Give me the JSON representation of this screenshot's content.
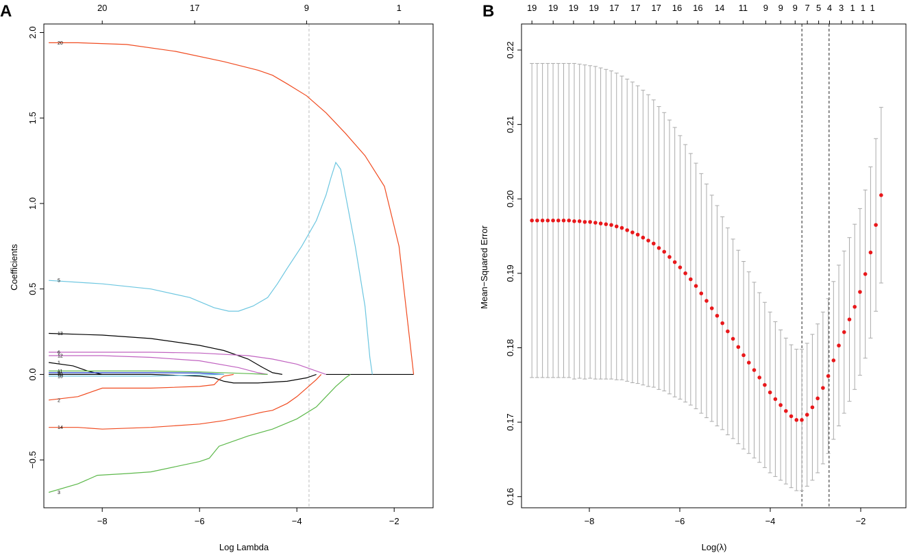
{
  "colors": {
    "red": "#f04a1f",
    "cyan": "#6cc6e0",
    "green": "#5cb84a",
    "purple": "#c062c0",
    "black": "#000000",
    "blue": "#1a3cc8",
    "errbar": "#aaaaaa",
    "point": "#e8181b",
    "vline_a": "#bdbdbd",
    "vline_b": "#444444"
  },
  "chart_data": [
    {
      "panel": "A",
      "type": "line",
      "xlabel": "Log Lambda",
      "ylabel": "Coefficients",
      "xlim": [
        -9.2,
        -1.2
      ],
      "ylim": [
        -0.78,
        2.05
      ],
      "xticks": [
        -8,
        -6,
        -4,
        -2
      ],
      "xtick_labels": [
        "−8",
        "−6",
        "−4",
        "−2"
      ],
      "yticks": [
        -0.5,
        0.0,
        0.5,
        1.0,
        1.5,
        2.0
      ],
      "ytick_labels": [
        "−0.5",
        "0.0",
        "0.5",
        "1.0",
        "1.5",
        "2.0"
      ],
      "top_axis": {
        "ticks": [
          -8,
          -6.1,
          -3.8,
          -1.9
        ],
        "labels": [
          "20",
          "17",
          "9",
          "1"
        ]
      },
      "vline": -3.75,
      "series": [
        {
          "label": "20",
          "color": "red",
          "x": [
            -9.1,
            -8.5,
            -7.5,
            -6.5,
            -5.5,
            -4.8,
            -4.5,
            -4.2,
            -3.8,
            -3.4,
            -3.0,
            -2.6,
            -2.2,
            -1.9,
            -1.6
          ],
          "y": [
            1.94,
            1.94,
            1.93,
            1.89,
            1.83,
            1.78,
            1.75,
            1.7,
            1.63,
            1.53,
            1.41,
            1.28,
            1.1,
            0.75,
            0.0
          ]
        },
        {
          "label": "5",
          "color": "cyan",
          "x": [
            -9.1,
            -8.0,
            -7.0,
            -6.2,
            -5.7,
            -5.4,
            -5.2,
            -4.9,
            -4.6,
            -4.4,
            -4.2,
            -3.9,
            -3.6,
            -3.4,
            -3.3,
            -3.2,
            -3.1,
            -3.0,
            -2.8,
            -2.6,
            -2.5,
            -2.45
          ],
          "y": [
            0.55,
            0.53,
            0.5,
            0.45,
            0.39,
            0.37,
            0.37,
            0.4,
            0.45,
            0.53,
            0.62,
            0.75,
            0.9,
            1.05,
            1.15,
            1.24,
            1.2,
            1.05,
            0.75,
            0.4,
            0.1,
            0.0
          ]
        },
        {
          "label": "13",
          "color": "black",
          "x": [
            -9.1,
            -8.0,
            -7.0,
            -6.0,
            -5.5,
            -5.0,
            -4.7,
            -4.5,
            -4.3
          ],
          "y": [
            0.24,
            0.23,
            0.21,
            0.17,
            0.14,
            0.09,
            0.04,
            0.01,
            0.0
          ]
        },
        {
          "label": "6",
          "color": "purple",
          "x": [
            -9.1,
            -8.0,
            -7.0,
            -6.0,
            -5.0,
            -4.5,
            -4.0,
            -3.6,
            -3.4
          ],
          "y": [
            0.13,
            0.13,
            0.13,
            0.125,
            0.11,
            0.09,
            0.06,
            0.02,
            0.0
          ]
        },
        {
          "label": "12",
          "color": "purple",
          "x": [
            -9.1,
            -8.0,
            -7.0,
            -6.0,
            -5.2,
            -4.8,
            -4.6
          ],
          "y": [
            0.11,
            0.11,
            0.1,
            0.08,
            0.04,
            0.01,
            0.0
          ]
        },
        {
          "label": "1",
          "color": "black",
          "x": [
            -9.1,
            -8.6,
            -8.3,
            -8.0
          ],
          "y": [
            0.07,
            0.05,
            0.02,
            0.0
          ]
        },
        {
          "label": "11",
          "color": "green",
          "x": [
            -9.1,
            -8.0,
            -7.0,
            -6.0,
            -5.0,
            -4.6
          ],
          "y": [
            0.02,
            0.02,
            0.02,
            0.015,
            0.005,
            0.0
          ]
        },
        {
          "label": "9",
          "color": "blue",
          "x": [
            -9.1,
            -7.0,
            -6.0,
            -5.5
          ],
          "y": [
            0.01,
            0.01,
            0.008,
            0.0
          ]
        },
        {
          "label": "18",
          "color": "black",
          "x": [
            -9.1,
            -7.0,
            -6.0,
            -5.7,
            -5.5,
            -5.3,
            -4.8,
            -4.2,
            -3.8,
            -3.6
          ],
          "y": [
            0.0,
            0.0,
            -0.01,
            -0.02,
            -0.04,
            -0.05,
            -0.05,
            -0.04,
            -0.02,
            0.0
          ]
        },
        {
          "label": "10",
          "color": "cyan",
          "x": [
            -9.1,
            -7.0,
            -5.5
          ],
          "y": [
            -0.01,
            -0.01,
            0.0
          ]
        },
        {
          "label": "2",
          "color": "red",
          "x": [
            -9.1,
            -8.5,
            -8.0,
            -7.0,
            -6.0,
            -5.7,
            -5.6,
            -5.5,
            -5.3
          ],
          "y": [
            -0.15,
            -0.13,
            -0.08,
            -0.08,
            -0.07,
            -0.06,
            -0.03,
            -0.01,
            0.0
          ]
        },
        {
          "label": "14",
          "color": "red",
          "x": [
            -9.1,
            -8.5,
            -8.0,
            -7.0,
            -6.0,
            -5.5,
            -5.0,
            -4.7,
            -4.5,
            -4.2,
            -4.0,
            -3.8,
            -3.6,
            -3.5
          ],
          "y": [
            -0.31,
            -0.31,
            -0.32,
            -0.31,
            -0.29,
            -0.27,
            -0.24,
            -0.22,
            -0.21,
            -0.17,
            -0.13,
            -0.08,
            -0.03,
            0.0
          ]
        },
        {
          "label": "3",
          "color": "green",
          "x": [
            -9.1,
            -8.5,
            -8.1,
            -7.5,
            -7.0,
            -6.5,
            -6.0,
            -5.8,
            -5.6,
            -5.4,
            -5.0,
            -4.5,
            -4.0,
            -3.6,
            -3.4,
            -3.2,
            -3.0,
            -2.9
          ],
          "y": [
            -0.69,
            -0.64,
            -0.59,
            -0.58,
            -0.57,
            -0.54,
            -0.51,
            -0.49,
            -0.42,
            -0.4,
            -0.36,
            -0.32,
            -0.26,
            -0.19,
            -0.13,
            -0.07,
            -0.02,
            0.0
          ]
        }
      ]
    },
    {
      "panel": "B",
      "type": "scatter",
      "xlabel": "Log(λ)",
      "ylabel": "Mean−Squared Error",
      "xlim": [
        -9.5,
        -1.0
      ],
      "ylim": [
        0.1585,
        0.2235
      ],
      "xticks": [
        -8,
        -6,
        -4,
        -2
      ],
      "xtick_labels": [
        "−8",
        "−6",
        "−4",
        "−2"
      ],
      "yticks": [
        0.16,
        0.17,
        0.18,
        0.19,
        0.2,
        0.21,
        0.22
      ],
      "ytick_labels": [
        "0.16",
        "0.17",
        "0.18",
        "0.19",
        "0.20",
        "0.21",
        "0.22"
      ],
      "top_axis": {
        "ticks": [
          -9.27,
          -8.8,
          -8.35,
          -7.9,
          -7.45,
          -6.98,
          -6.52,
          -6.06,
          -5.6,
          -5.12,
          -4.6,
          -4.1,
          -3.77,
          -3.45,
          -3.18,
          -2.93,
          -2.69,
          -2.43,
          -2.18,
          -1.95,
          -1.74
        ],
        "labels": [
          "19",
          "19",
          "19",
          "19",
          "17",
          "17",
          "17",
          "16",
          "16",
          "14",
          "11",
          "9",
          "9",
          "9",
          "7",
          "5",
          "4",
          "3",
          "1",
          "1",
          "1"
        ]
      },
      "vlines": [
        -3.3,
        -2.7
      ],
      "n_points": 67,
      "x_start": -9.27,
      "x_step": 0.117,
      "mse": [
        0.1971,
        0.1971,
        0.1971,
        0.1971,
        0.1971,
        0.1971,
        0.1971,
        0.1971,
        0.197,
        0.197,
        0.1969,
        0.1969,
        0.1968,
        0.1967,
        0.1966,
        0.1965,
        0.1963,
        0.1961,
        0.1958,
        0.1955,
        0.1952,
        0.1948,
        0.1944,
        0.194,
        0.1934,
        0.1929,
        0.1922,
        0.1915,
        0.1908,
        0.19,
        0.1892,
        0.1883,
        0.1873,
        0.1863,
        0.1853,
        0.1843,
        0.1833,
        0.1822,
        0.1812,
        0.1801,
        0.179,
        0.178,
        0.177,
        0.176,
        0.175,
        0.174,
        0.1731,
        0.1723,
        0.1715,
        0.1708,
        0.1703,
        0.1703,
        0.171,
        0.172,
        0.1732,
        0.1746,
        0.1762,
        0.1783,
        0.1803,
        0.1821,
        0.1838,
        0.1855,
        0.1875,
        0.1899,
        0.1928,
        0.1965,
        0.2005
      ],
      "upper": [
        0.2182,
        0.2182,
        0.2182,
        0.2182,
        0.2182,
        0.2182,
        0.2182,
        0.2182,
        0.2182,
        0.2181,
        0.218,
        0.2179,
        0.2178,
        0.2176,
        0.2174,
        0.2172,
        0.2169,
        0.2165,
        0.2161,
        0.2157,
        0.2152,
        0.2146,
        0.214,
        0.2133,
        0.2124,
        0.2116,
        0.2106,
        0.2096,
        0.2085,
        0.2073,
        0.2061,
        0.2048,
        0.2034,
        0.202,
        0.2005,
        0.1991,
        0.1976,
        0.1961,
        0.1946,
        0.1931,
        0.1916,
        0.1902,
        0.1888,
        0.1874,
        0.1861,
        0.1848,
        0.1835,
        0.1824,
        0.1813,
        0.1804,
        0.1798,
        0.1798,
        0.1806,
        0.1818,
        0.1832,
        0.1848,
        0.1866,
        0.1889,
        0.1911,
        0.193,
        0.1948,
        0.1966,
        0.1987,
        0.2012,
        0.2043,
        0.2081,
        0.2123
      ]
    }
  ]
}
